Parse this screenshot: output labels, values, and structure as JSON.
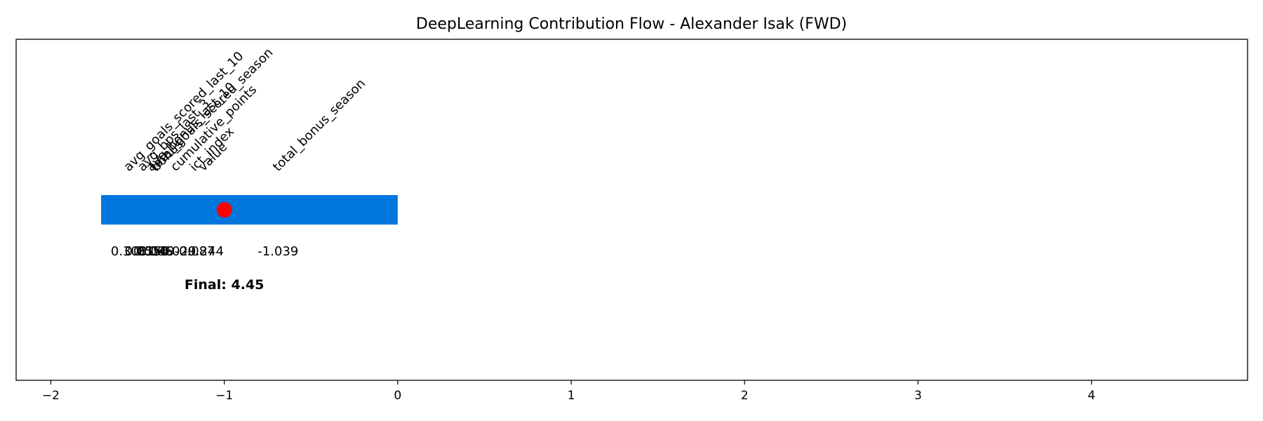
{
  "chart_data": {
    "type": "bar",
    "title": "DeepLearning Contribution Flow - Alexander Isak (FWD)",
    "xlabel": "",
    "ylabel": "",
    "xlim": [
      -2.2,
      4.9
    ],
    "xticks": [
      -2,
      -1,
      0,
      1,
      2,
      3,
      4
    ],
    "bar": {
      "start": -1.71,
      "end": 0.0,
      "color": "#0077dd"
    },
    "marker": {
      "x": -1.0,
      "color": "#ff0000"
    },
    "features": [
      {
        "name": "avg_goals_scored_last_10",
        "position": -1.55,
        "contribution": "0.308"
      },
      {
        "name": "avg_bps_last_3",
        "position": -1.47,
        "contribution": "0.255"
      },
      {
        "name": "avg_bonus_last_10",
        "position": -1.42,
        "contribution": "0.156"
      },
      {
        "name": "total_goals_scored_season",
        "position": -1.4,
        "contribution": "0.066"
      },
      {
        "name": "bonus",
        "position": -1.39,
        "contribution": "0.049"
      },
      {
        "name": "cumulative_points",
        "position": -1.28,
        "contribution": "-0.029"
      },
      {
        "name": "ict_index",
        "position": -1.17,
        "contribution": "-0.087"
      },
      {
        "name": "value",
        "position": -1.12,
        "contribution": "-0.244"
      },
      {
        "name": "total_bonus_season",
        "position": -0.69,
        "contribution": "-1.039"
      }
    ],
    "final_label": "Final: 4.45"
  }
}
